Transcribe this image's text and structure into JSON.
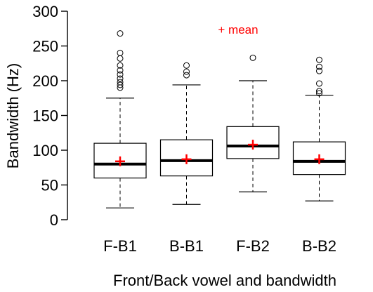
{
  "chart_data": {
    "type": "boxplot",
    "xlabel": "Front/Back vowel and bandwidth",
    "ylabel": "Bandwidth (Hz)",
    "ylim": [
      0,
      300
    ],
    "yticks": [
      0,
      50,
      100,
      150,
      200,
      250,
      300
    ],
    "legend": {
      "text": "+ mean",
      "position": "top-center",
      "color": "#ff0000"
    },
    "categories": [
      "F-B1",
      "B-B1",
      "F-B2",
      "B-B2"
    ],
    "boxes": [
      {
        "label": "F-B1",
        "whisker_low": 17,
        "q1": 60,
        "median": 80,
        "q3": 110,
        "whisker_high": 175,
        "mean": 84,
        "outliers": [
          268,
          240,
          232,
          222,
          215,
          209,
          203,
          198,
          194,
          190
        ]
      },
      {
        "label": "B-B1",
        "whisker_low": 22,
        "q1": 63,
        "median": 85,
        "q3": 115,
        "whisker_high": 194,
        "mean": 87,
        "outliers": [
          222,
          213,
          208
        ]
      },
      {
        "label": "F-B2",
        "whisker_low": 40,
        "q1": 88,
        "median": 106,
        "q3": 134,
        "whisker_high": 200,
        "mean": 108,
        "outliers": [
          233
        ]
      },
      {
        "label": "B-B2",
        "whisker_low": 27,
        "q1": 65,
        "median": 84,
        "q3": 112,
        "whisker_high": 179,
        "mean": 87,
        "outliers": [
          230,
          220,
          214,
          196,
          185,
          182
        ]
      }
    ]
  }
}
